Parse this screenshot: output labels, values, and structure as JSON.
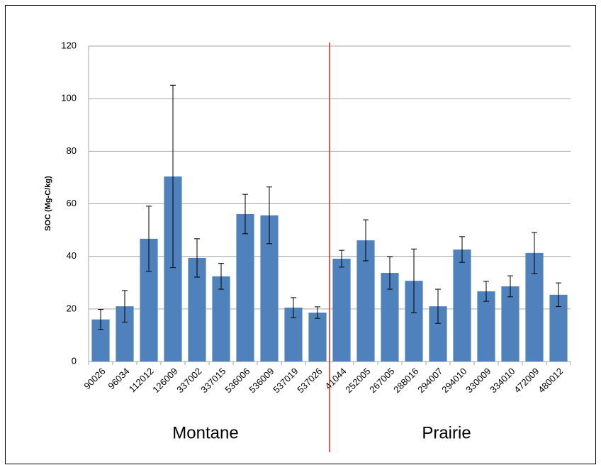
{
  "chart_data": {
    "type": "bar",
    "y_label": "SOC (Mg-C/kg)",
    "categories": [
      "90026",
      "96034",
      "112012",
      "126009",
      "337002",
      "337015",
      "536006",
      "536009",
      "537019",
      "537026",
      "41044",
      "252005",
      "267005",
      "288016",
      "294007",
      "294010",
      "330009",
      "334010",
      "472009",
      "480012"
    ],
    "values": [
      16,
      21,
      46.7,
      70.4,
      39.4,
      32.4,
      56.1,
      55.6,
      20.5,
      18.6,
      39.1,
      46.1,
      33.7,
      30.7,
      21,
      42.6,
      26.7,
      28.6,
      41.3,
      25.4
    ],
    "errors": [
      3.8,
      6,
      12.4,
      34.7,
      7.3,
      4.9,
      7.5,
      10.8,
      3.8,
      2.2,
      3.2,
      7.8,
      6.2,
      12.1,
      6.5,
      4.9,
      3.8,
      4,
      7.8,
      4.5
    ],
    "color": "#4f81bd",
    "groups": [
      "Montane",
      "Prairie"
    ],
    "ylim": [
      0,
      120
    ],
    "yticks": [
      0,
      20,
      40,
      60,
      80,
      100,
      120
    ],
    "grid": true
  }
}
